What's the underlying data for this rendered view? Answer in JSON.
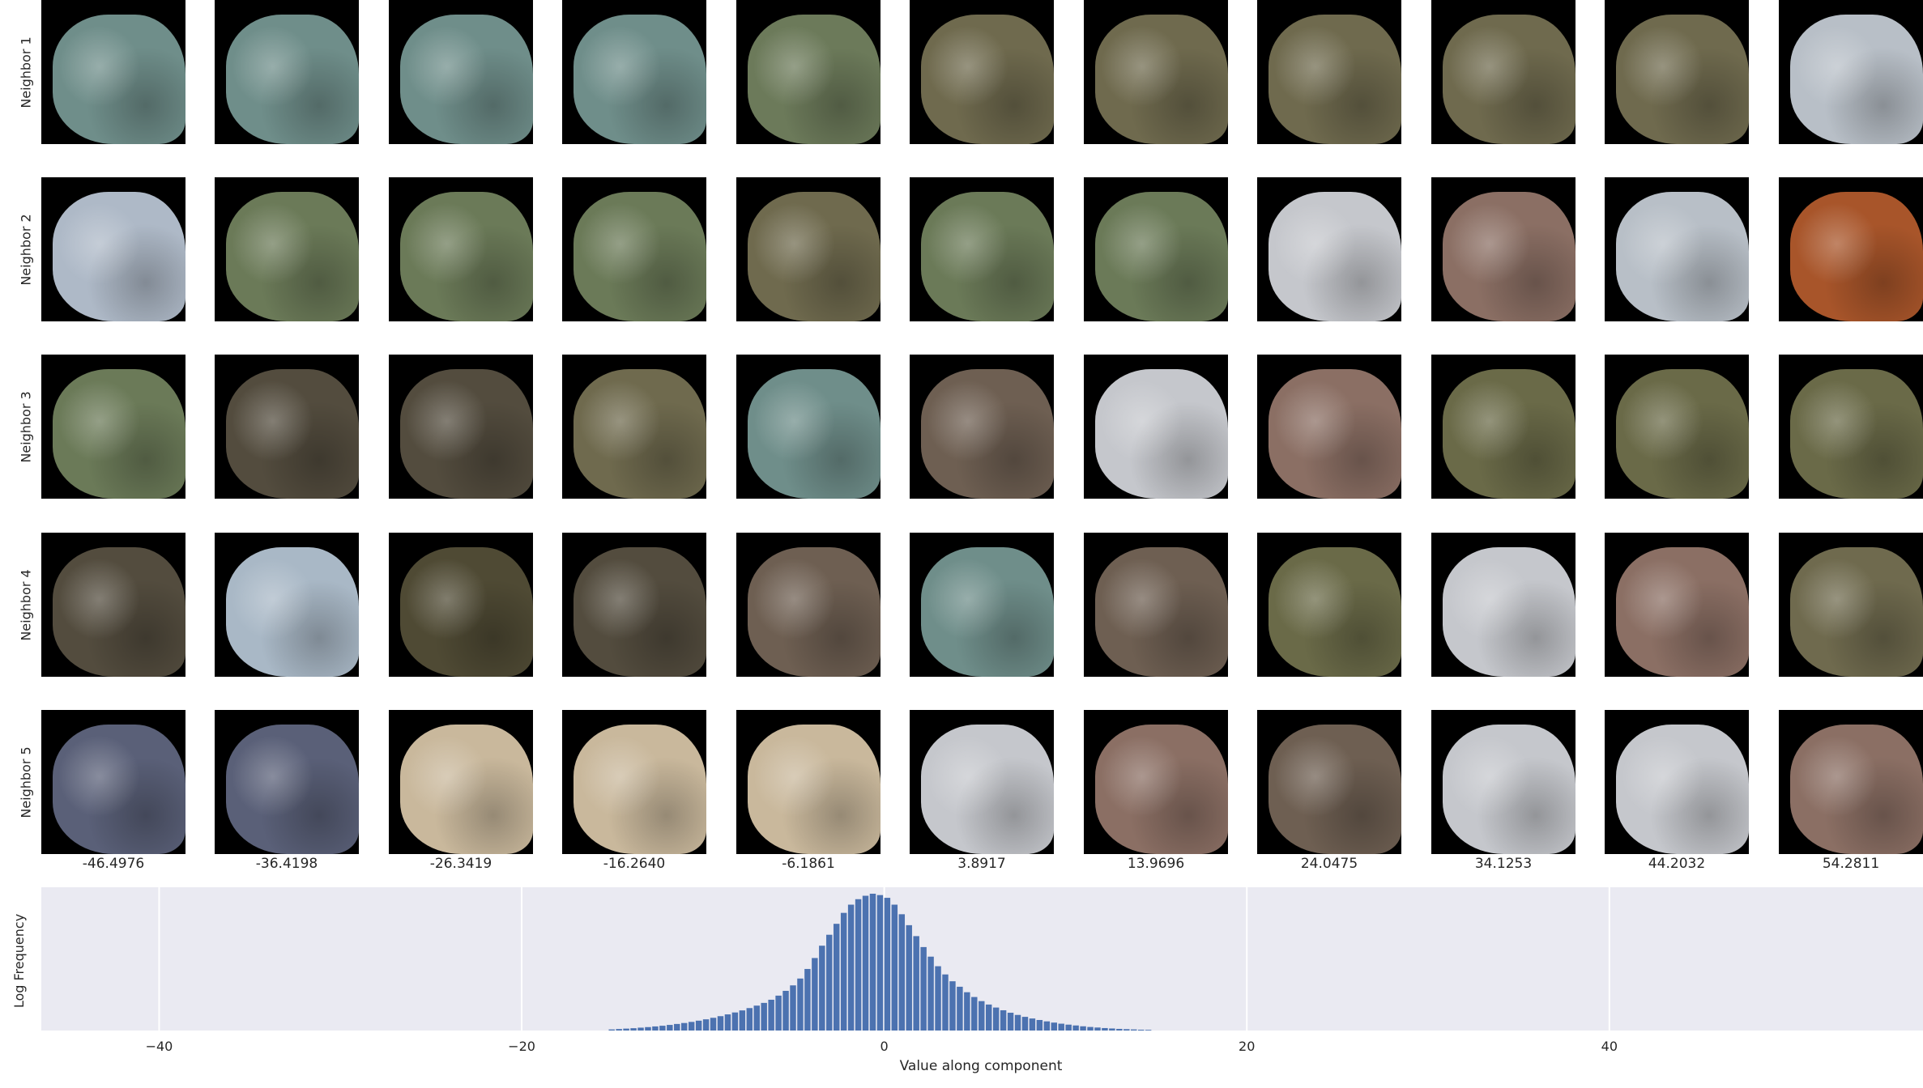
{
  "row_labels": [
    "Neighbor 1",
    "Neighbor 2",
    "Neighbor 3",
    "Neighbor 4",
    "Neighbor 5"
  ],
  "column_values": [
    "-46.4976",
    "-36.4198",
    "-26.3419",
    "-16.2640",
    "-6.1861",
    "3.8917",
    "13.9696",
    "24.0475",
    "34.1253",
    "44.2032",
    "54.2811"
  ],
  "tile_colors": [
    [
      "#6f8e8a",
      "#6f8e8a",
      "#6f8e8a",
      "#6f8e8a",
      "#6c7a5a",
      "#6f6a4e",
      "#6f6a4e",
      "#6f6a4e",
      "#6f6a4e",
      "#6f6a4e",
      "#b8bfc7"
    ],
    [
      "#aeb9c7",
      "#6b7a58",
      "#6b7a58",
      "#6b7a58",
      "#6f6a4e",
      "#6b7a58",
      "#6b7a58",
      "#c5c7cc",
      "#8b6f64",
      "#b8bfc7",
      "#a8552a"
    ],
    [
      "#6b7a58",
      "#534c3e",
      "#534c3e",
      "#6f6a4e",
      "#6f8e8a",
      "#6e5f52",
      "#c5c7cc",
      "#8b6f64",
      "#6a6a48",
      "#6a6a48",
      "#6a6a48"
    ],
    [
      "#534c3e",
      "#a9b8c6",
      "#4f4a34",
      "#534c3e",
      "#6e5f52",
      "#6f8e8a",
      "#6e5f52",
      "#6a6a48",
      "#c5c7cc",
      "#8b6f64",
      "#6f6a4e"
    ],
    [
      "#5a6078",
      "#5a6078",
      "#c9b89c",
      "#c9b89c",
      "#c9b89c",
      "#c5c7cc",
      "#8b6f64",
      "#6e5f52",
      "#c5c7cc",
      "#c5c7cc",
      "#8b6f64"
    ]
  ],
  "chart_data": {
    "type": "bar",
    "xlabel": "Value along component",
    "ylabel": "Log Frequency",
    "xlim": [
      -46.5,
      57.3
    ],
    "x_ticks": [
      -40,
      -20,
      0,
      20,
      40
    ],
    "x_tick_labels": [
      "−40",
      "−20",
      "0",
      "20",
      "40"
    ],
    "grid": true,
    "bar_color": "#4c72b0",
    "background_color": "#eaeaf2",
    "bin_width": 0.4,
    "x": [
      -15.0,
      -14.6,
      -14.2,
      -13.8,
      -13.4,
      -13.0,
      -12.6,
      -12.2,
      -11.8,
      -11.4,
      -11.0,
      -10.6,
      -10.2,
      -9.8,
      -9.4,
      -9.0,
      -8.6,
      -8.2,
      -7.8,
      -7.4,
      -7.0,
      -6.6,
      -6.2,
      -5.8,
      -5.4,
      -5.0,
      -4.6,
      -4.2,
      -3.8,
      -3.4,
      -3.0,
      -2.6,
      -2.2,
      -1.8,
      -1.4,
      -1.0,
      -0.6,
      -0.2,
      0.2,
      0.6,
      1.0,
      1.4,
      1.8,
      2.2,
      2.6,
      3.0,
      3.4,
      3.8,
      4.2,
      4.6,
      5.0,
      5.4,
      5.8,
      6.2,
      6.6,
      7.0,
      7.4,
      7.8,
      8.2,
      8.6,
      9.0,
      9.4,
      9.8,
      10.2,
      10.6,
      11.0,
      11.4,
      11.8,
      12.2,
      12.6,
      13.0,
      13.4,
      13.8,
      14.2,
      14.6
    ],
    "values": [
      0.008,
      0.011,
      0.014,
      0.017,
      0.021,
      0.025,
      0.03,
      0.035,
      0.041,
      0.048,
      0.055,
      0.063,
      0.072,
      0.082,
      0.093,
      0.105,
      0.118,
      0.132,
      0.147,
      0.164,
      0.182,
      0.202,
      0.225,
      0.255,
      0.29,
      0.33,
      0.38,
      0.45,
      0.53,
      0.62,
      0.7,
      0.78,
      0.86,
      0.92,
      0.96,
      0.985,
      1.0,
      0.99,
      0.97,
      0.92,
      0.85,
      0.77,
      0.69,
      0.61,
      0.54,
      0.47,
      0.41,
      0.36,
      0.32,
      0.28,
      0.245,
      0.215,
      0.19,
      0.168,
      0.148,
      0.13,
      0.114,
      0.1,
      0.088,
      0.077,
      0.067,
      0.058,
      0.05,
      0.043,
      0.037,
      0.031,
      0.026,
      0.022,
      0.018,
      0.015,
      0.012,
      0.01,
      0.008,
      0.006,
      0.005
    ]
  }
}
